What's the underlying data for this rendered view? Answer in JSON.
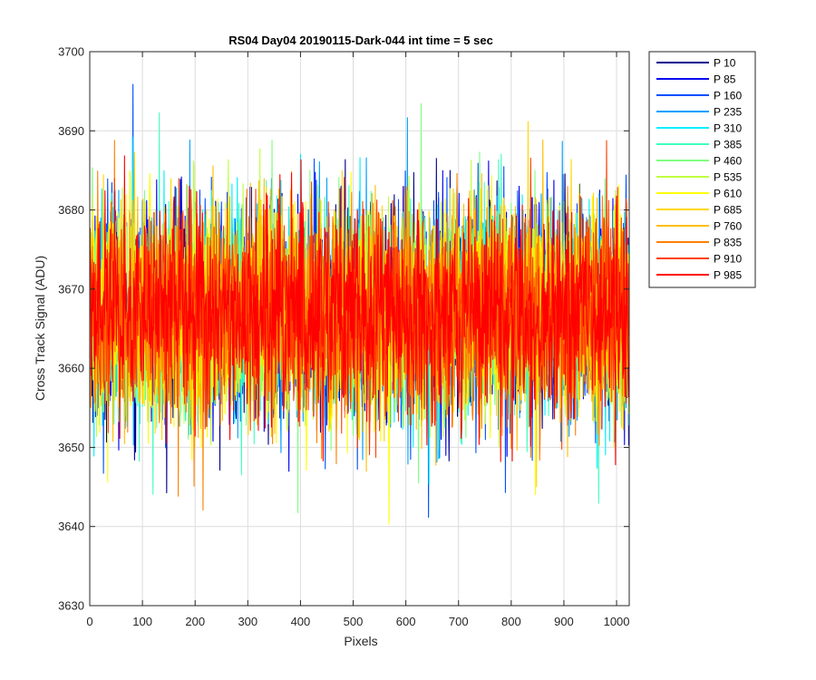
{
  "chart_data": {
    "type": "line",
    "title": "RS04 Day04 20190115-Dark-044 int time = 5 sec",
    "xlabel": "Pixels",
    "ylabel": "Cross Track Signal (ADU)",
    "xlim": [
      0,
      1024
    ],
    "ylim": [
      3630,
      3700
    ],
    "xticks": [
      0,
      100,
      200,
      300,
      400,
      500,
      600,
      700,
      800,
      900,
      1000
    ],
    "yticks": [
      3630,
      3640,
      3650,
      3660,
      3670,
      3680,
      3690,
      3700
    ],
    "grid": true,
    "legend_position": "outside-top-right",
    "pixel_count": 1024,
    "noise": {
      "mean": 3667,
      "std": 6.5,
      "min": 3637,
      "max": 3696
    },
    "series": [
      {
        "name": "P 10",
        "color": "#00008F"
      },
      {
        "name": "P 85",
        "color": "#0000EF"
      },
      {
        "name": "P 160",
        "color": "#0050FF"
      },
      {
        "name": "P 235",
        "color": "#009FFF"
      },
      {
        "name": "P 310",
        "color": "#00EFFF"
      },
      {
        "name": "P 385",
        "color": "#40FFBF"
      },
      {
        "name": "P 460",
        "color": "#7FFF7F"
      },
      {
        "name": "P 535",
        "color": "#BFFF3F"
      },
      {
        "name": "P 610",
        "color": "#FFFF00"
      },
      {
        "name": "P 685",
        "color": "#FFD700"
      },
      {
        "name": "P 760",
        "color": "#FFBF00"
      },
      {
        "name": "P 835",
        "color": "#FF8000"
      },
      {
        "name": "P 910",
        "color": "#FF4000"
      },
      {
        "name": "P 985",
        "color": "#FF0000"
      }
    ]
  }
}
